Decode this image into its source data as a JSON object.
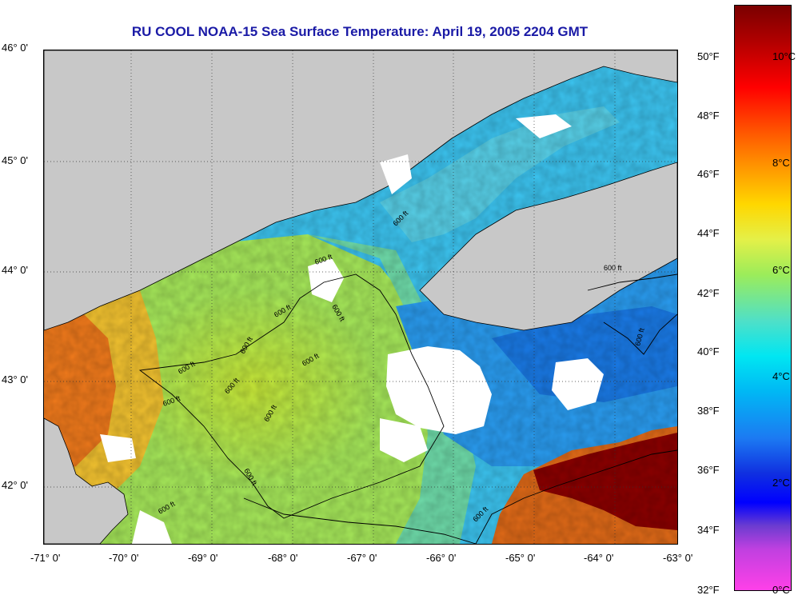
{
  "title": "RU COOL  NOAA-15  Sea Surface Temperature:  April 19, 2005 2204 GMT",
  "latitude_labels": [
    "46° 0'",
    "45° 0'",
    "44° 0'",
    "43° 0'",
    "42° 0'"
  ],
  "longitude_labels": [
    "-71° 0'",
    "-70° 0'",
    "-69° 0'",
    "-68° 0'",
    "-67° 0'",
    "-66° 0'",
    "-65° 0'",
    "-64° 0'",
    "-63° 0'"
  ],
  "colorbar": {
    "fahrenheit_labels": [
      "50°F",
      "48°F",
      "46°F",
      "44°F",
      "42°F",
      "40°F",
      "38°F",
      "36°F",
      "34°F",
      "32°F"
    ],
    "celsius_labels": [
      "10°C",
      "8°C",
      "6°C",
      "4°C",
      "2°C",
      "0°C"
    ]
  },
  "isobath_labels": [
    "600 ft",
    "600 ft",
    "600 ft",
    "600 ft",
    "600 ft",
    "600 ft",
    "600 ft",
    "600 ft",
    "600 ft",
    "600 ft",
    "600 ft",
    "600 ft",
    "600 ft",
    "600 ft",
    "600 ft"
  ],
  "colors": {
    "title": "#1a1aa6",
    "land": "#c8c8c8",
    "cloud": "#ffffff",
    "warm_core": "#8b0000"
  }
}
